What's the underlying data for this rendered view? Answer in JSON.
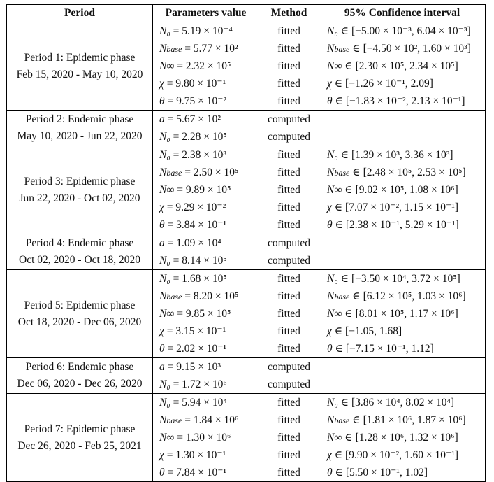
{
  "header": {
    "period": "Period",
    "parameters": "Parameters value",
    "method": "Method",
    "ci": "95% Confidence interval"
  },
  "rows": [
    {
      "title": "Period 1: Epidemic phase",
      "dates": "Feb 15, 2020 - May 10, 2020",
      "params": [
        "N₀ = 5.19 × 10⁻⁴",
        "Nbase = 5.77 × 10²",
        "N∞ = 2.32 × 10⁵",
        "χ = 9.80 × 10⁻¹",
        "θ = 9.75 × 10⁻²"
      ],
      "methods": [
        "fitted",
        "fitted",
        "fitted",
        "fitted",
        "fitted"
      ],
      "ci": [
        "N₀ ∈ [−5.00 × 10⁻³, 6.04 × 10⁻³]",
        "Nbase ∈ [−4.50 × 10², 1.60 × 10³]",
        "N∞ ∈ [2.30 × 10⁵, 2.34 × 10⁵]",
        "χ ∈ [−1.26 × 10⁻¹, 2.09]",
        "θ ∈ [−1.83 × 10⁻², 2.13 × 10⁻¹]"
      ]
    },
    {
      "title": "Period 2: Endemic phase",
      "dates": "May 10, 2020 - Jun 22, 2020",
      "params": [
        "a = 5.67 × 10²",
        "N₀ = 2.28 × 10⁵"
      ],
      "methods": [
        "computed",
        "computed"
      ],
      "ci": []
    },
    {
      "title": "Period 3: Epidemic phase",
      "dates": "Jun 22, 2020 - Oct 02, 2020",
      "params": [
        "N₀ = 2.38 × 10³",
        "Nbase = 2.50 × 10⁵",
        "N∞ = 9.89 × 10⁵",
        "χ = 9.29 × 10⁻²",
        "θ = 3.84 × 10⁻¹"
      ],
      "methods": [
        "fitted",
        "fitted",
        "fitted",
        "fitted",
        "fitted"
      ],
      "ci": [
        "N₀ ∈ [1.39 × 10³, 3.36 × 10³]",
        "Nbase ∈ [2.48 × 10⁵, 2.53 × 10⁵]",
        "N∞ ∈ [9.02 × 10⁵, 1.08 × 10⁶]",
        "χ ∈ [7.07 × 10⁻², 1.15 × 10⁻¹]",
        "θ ∈ [2.38 × 10⁻¹, 5.29 × 10⁻¹]"
      ]
    },
    {
      "title": "Period 4: Endemic phase",
      "dates": "Oct 02, 2020 - Oct 18, 2020",
      "params": [
        "a = 1.09 × 10⁴",
        "N₀ = 8.14 × 10⁵"
      ],
      "methods": [
        "computed",
        "computed"
      ],
      "ci": []
    },
    {
      "title": "Period 5: Epidemic phase",
      "dates": "Oct 18, 2020 - Dec 06, 2020",
      "params": [
        "N₀ = 1.68 × 10⁵",
        "Nbase = 8.20 × 10⁵",
        "N∞ = 9.85 × 10⁵",
        "χ = 3.15 × 10⁻¹",
        "θ = 2.02 × 10⁻¹"
      ],
      "methods": [
        "fitted",
        "fitted",
        "fitted",
        "fitted",
        "fitted"
      ],
      "ci": [
        "N₀ ∈ [−3.50 × 10⁴, 3.72 × 10⁵]",
        "Nbase ∈ [6.12 × 10⁵, 1.03 × 10⁶]",
        "N∞ ∈ [8.01 × 10⁵, 1.17 × 10⁶]",
        "χ ∈ [−1.05, 1.68]",
        "θ ∈ [−7.15 × 10⁻¹, 1.12]"
      ]
    },
    {
      "title": "Period 6: Endemic phase",
      "dates": "Dec 06, 2020 - Dec 26, 2020",
      "params": [
        "a = 9.15 × 10³",
        "N₀ = 1.72 × 10⁶"
      ],
      "methods": [
        "computed",
        "computed"
      ],
      "ci": []
    },
    {
      "title": "Period 7: Epidemic phase",
      "dates": "Dec 26, 2020 - Feb 25, 2021",
      "params": [
        "N₀ = 5.94 × 10⁴",
        "Nbase = 1.84 × 10⁶",
        "N∞ = 1.30 × 10⁶",
        "χ = 1.30 × 10⁻¹",
        "θ = 7.84 × 10⁻¹"
      ],
      "methods": [
        "fitted",
        "fitted",
        "fitted",
        "fitted",
        "fitted"
      ],
      "ci": [
        "N₀ ∈ [3.86 × 10⁴, 8.02 × 10⁴]",
        "Nbase ∈ [1.81 × 10⁶, 1.87 × 10⁶]",
        "N∞ ∈ [1.28 × 10⁶, 1.32 × 10⁶]",
        "χ ∈ [9.90 × 10⁻², 1.60 × 10⁻¹]",
        "θ ∈ [5.50 × 10⁻¹, 1.02]"
      ]
    }
  ]
}
